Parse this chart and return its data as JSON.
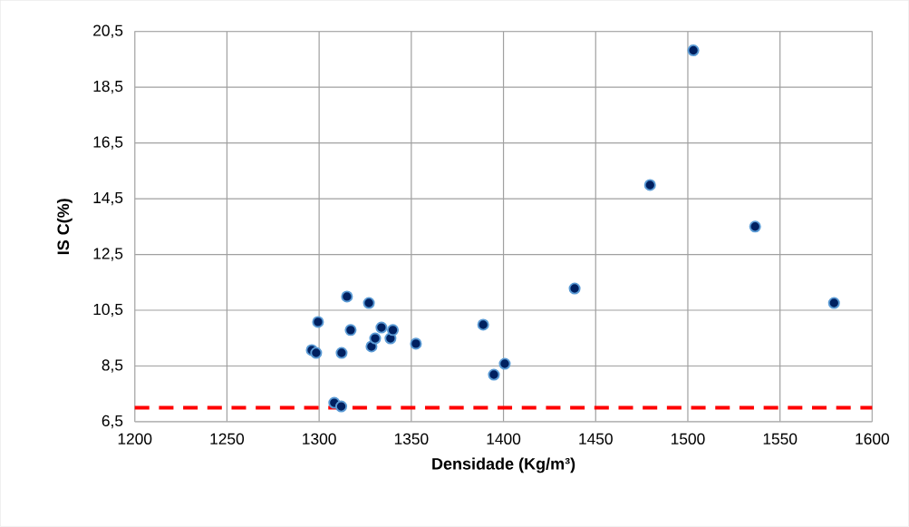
{
  "chart_data": {
    "type": "scatter",
    "xlabel": "Densidade (Kg/m³)",
    "ylabel": "IS C(%)",
    "x": [
      1296,
      1298.4,
      1299.4,
      1315.1,
      1317.1,
      1312.2,
      1308.2,
      1312,
      1327,
      1328.4,
      1330.4,
      1333.8,
      1338.7,
      1340,
      1352.5,
      1389,
      1394.8,
      1400.7,
      1438.6,
      1479.5,
      1503,
      1536.5,
      1579.3
    ],
    "series": [
      {
        "color": "#002060",
        "values": [
          9.07,
          8.97,
          10.08,
          10.99,
          9.79,
          8.97,
          7.18,
          7.05,
          10.76,
          9.2,
          9.49,
          9.88,
          9.49,
          9.79,
          9.3,
          9.98,
          8.19,
          8.58,
          11.28,
          14.99,
          19.82,
          13.5,
          10.76
        ]
      }
    ],
    "marker": "circle",
    "grid": true,
    "xlim": [
      1200,
      1600
    ],
    "ylim": [
      6.5,
      20.5
    ],
    "xticks": [
      1200,
      1250,
      1300,
      1350,
      1400,
      1450,
      1500,
      1550,
      1600
    ],
    "yticks": [
      {
        "value": 6.5,
        "label": "6,5"
      },
      {
        "value": 8.5,
        "label": "8,5"
      },
      {
        "value": 10.5,
        "label": "10,5"
      },
      {
        "value": 12.5,
        "label": "12,5"
      },
      {
        "value": 14.5,
        "label": "14,5"
      },
      {
        "value": 16.5,
        "label": "16,5"
      },
      {
        "value": 18.5,
        "label": "18,5"
      },
      {
        "value": 20.5,
        "label": "20,5"
      }
    ],
    "ref_lines": [
      {
        "axis": "y",
        "value": 7,
        "color": "#ff0000",
        "line_style": "dashed"
      }
    ]
  }
}
